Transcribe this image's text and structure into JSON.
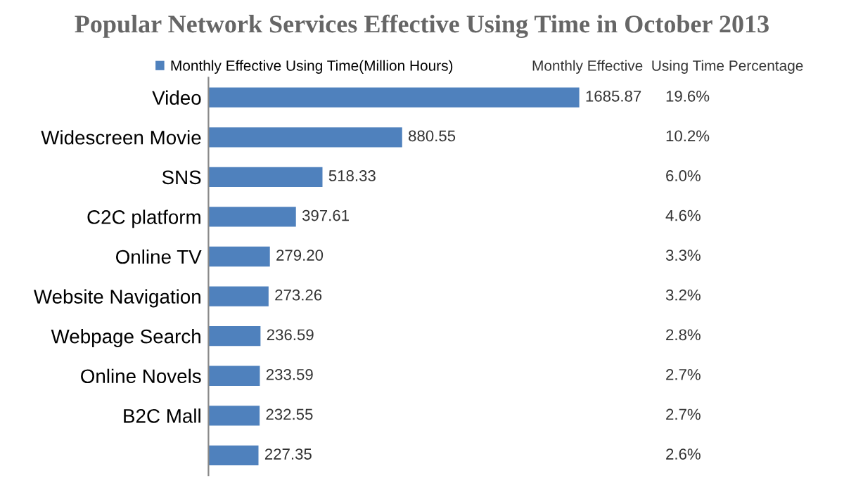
{
  "chart_data": {
    "type": "bar",
    "orientation": "horizontal",
    "title": "Popular Network Services Effective Using Time in October 2013",
    "categories": [
      "Video",
      "Widescreen Movie",
      "SNS",
      "C2C platform",
      "Online TV",
      "Website Navigation",
      "Webpage Search",
      "Online Novels",
      "B2C Mall",
      null
    ],
    "series": [
      {
        "name": "Monthly Effective Using Time(Million Hours)",
        "color": "#4f81bd",
        "values": [
          1685.87,
          880.55,
          518.33,
          397.61,
          279.2,
          273.26,
          236.59,
          233.59,
          232.55,
          227.35
        ],
        "value_labels": [
          "1685.87",
          "880.55",
          "518.33",
          "397.61",
          "279.20",
          "273.26",
          "236.59",
          "233.59",
          "232.55",
          "227.35"
        ]
      }
    ],
    "annotations": [
      "Monthly Effective  Using Time Percentage",
      "19.6%",
      "10.2%",
      "6.0%",
      "4.6%",
      "3.3%",
      "3.2%",
      "2.8%",
      "2.7%",
      "2.7%",
      "2.6%"
    ],
    "legend": "top left",
    "grid": false
  }
}
